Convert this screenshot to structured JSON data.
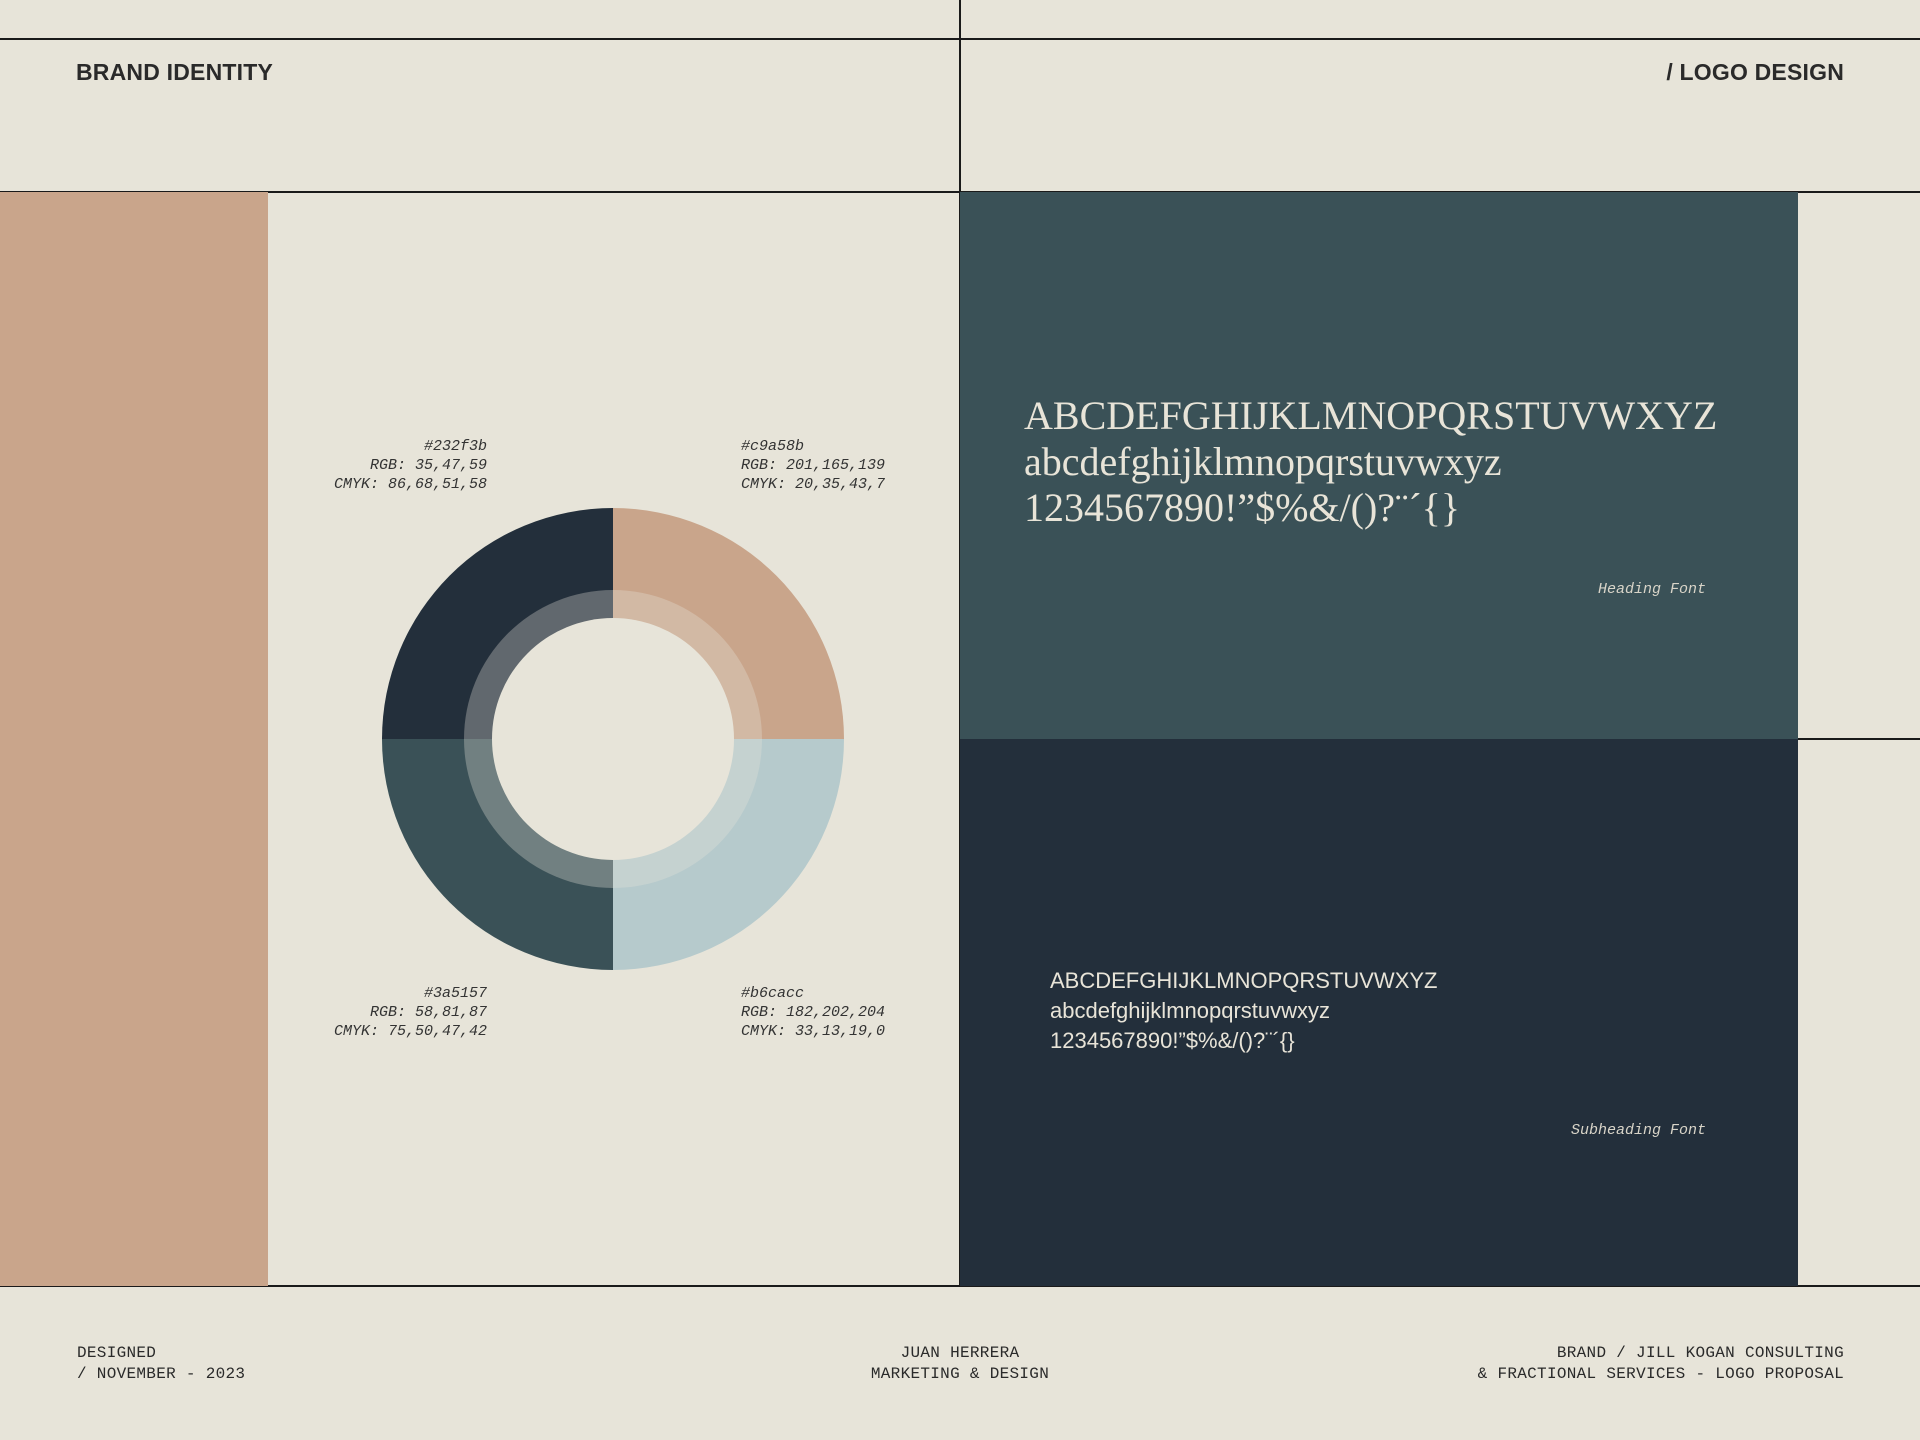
{
  "header": {
    "left_title": "BRAND IDENTITY",
    "right_title": "/ LOGO DESIGN"
  },
  "palette": {
    "swatches": [
      {
        "hex": "#232f3b",
        "rgb": "RGB: 35,47,59",
        "cmyk": "CMYK: 86,68,51,58",
        "color": "#232f3b"
      },
      {
        "hex": "#c9a58b",
        "rgb": "RGB: 201,165,139",
        "cmyk": "CMYK: 20,35,43,7",
        "color": "#c9a58b"
      },
      {
        "hex": "#3a5157",
        "rgb": "RGB: 58,81,87",
        "cmyk": "CMYK: 75,50,47,42",
        "color": "#3a5157"
      },
      {
        "hex": "#b6cacc",
        "rgb": "RGB: 182,202,204",
        "cmyk": "CMYK: 33,13,19,0",
        "color": "#b6cacc"
      }
    ],
    "background": "#e7e4d9"
  },
  "typography": {
    "heading": {
      "uppercase": "ABCDEFGHIJKLMNOPQRSTUVWXYZ",
      "lowercase": "abcdefghijklmnopqrstuvwxyz",
      "numerals": "1234567890!”$%&/()?¨´{}",
      "caption": "Heading Font"
    },
    "subheading": {
      "uppercase": "ABCDEFGHIJKLMNOPQRSTUVWXYZ",
      "lowercase": "abcdefghijklmnopqrstuvwxyz",
      "numerals": "1234567890!”$%&/()?¨´{}",
      "caption": "Subheading Font"
    }
  },
  "footer": {
    "left_line1": "DESIGNED",
    "left_line2": "/ NOVEMBER - 2023",
    "center_line1": "JUAN HERRERA",
    "center_line2": "MARKETING & DESIGN",
    "right_line1": "BRAND / JILL KOGAN CONSULTING",
    "right_line2": "& FRACTIONAL SERVICES - LOGO PROPOSAL"
  }
}
